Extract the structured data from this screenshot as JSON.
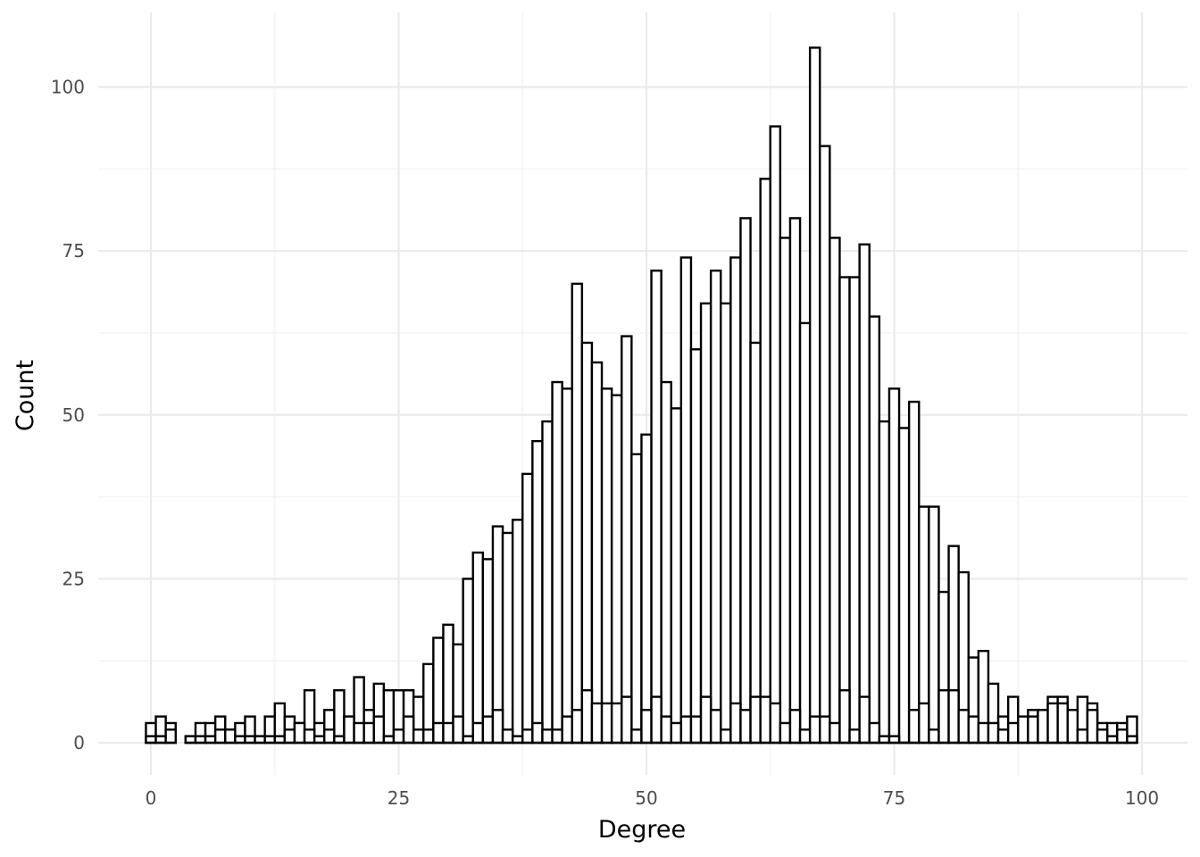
{
  "chart_data": {
    "type": "bar",
    "xlabel": "Degree",
    "ylabel": "Count",
    "xlim": [
      -5,
      105
    ],
    "ylim": [
      -5,
      111
    ],
    "x_ticks": [
      0,
      25,
      50,
      75,
      100
    ],
    "x_tick_labels": [
      "0",
      "25",
      "50",
      "75",
      "100"
    ],
    "y_ticks": [
      0,
      25,
      50,
      75,
      100
    ],
    "y_tick_labels": [
      "0",
      "25",
      "50",
      "75",
      "100"
    ],
    "grid": true,
    "legend": "none",
    "bin_width": 1,
    "series": [
      {
        "x": [
          0,
          1,
          2,
          4,
          5,
          6,
          7,
          8,
          9,
          10,
          11,
          12,
          13,
          14,
          15,
          16,
          17,
          18,
          19,
          20,
          21,
          22,
          23,
          24,
          25,
          26,
          27,
          28,
          29,
          30,
          31,
          32,
          33,
          34,
          35,
          36,
          37,
          38,
          39,
          40,
          41,
          42,
          43,
          44,
          45,
          46,
          47,
          48,
          49,
          50,
          51,
          52,
          53,
          54,
          55,
          56,
          57,
          58,
          59,
          60,
          61,
          62,
          63,
          64,
          65,
          66,
          67,
          68,
          69,
          70,
          71,
          72,
          73,
          74,
          75,
          76,
          77,
          78,
          79,
          80,
          81,
          82,
          83,
          84,
          85,
          86,
          87,
          88,
          89,
          90,
          91,
          92,
          93,
          94,
          95,
          96,
          97,
          98,
          99
        ],
        "values": [
          3,
          4,
          3,
          1,
          3,
          3,
          4,
          2,
          3,
          4,
          1,
          4,
          6,
          4,
          3,
          8,
          3,
          5,
          8,
          4,
          10,
          5,
          9,
          8,
          8,
          8,
          7,
          12,
          16,
          18,
          15,
          25,
          29,
          28,
          33,
          32,
          34,
          41,
          46,
          49,
          55,
          54,
          70,
          61,
          58,
          54,
          53,
          62,
          44,
          47,
          72,
          55,
          51,
          74,
          60,
          67,
          72,
          67,
          74,
          80,
          61,
          86,
          94,
          77,
          80,
          64,
          106,
          91,
          77,
          71,
          71,
          76,
          65,
          49,
          54,
          48,
          52,
          36,
          36,
          23,
          30,
          26,
          13,
          14,
          9,
          4,
          7,
          3,
          5,
          5,
          7,
          7,
          5,
          7,
          6,
          3,
          3,
          3,
          4
        ]
      },
      {
        "x": [
          0,
          1,
          2,
          4,
          5,
          6,
          7,
          8,
          9,
          10,
          11,
          12,
          13,
          14,
          15,
          16,
          17,
          18,
          19,
          20,
          21,
          22,
          23,
          24,
          25,
          26,
          27,
          28,
          29,
          30,
          31,
          32,
          33,
          34,
          35,
          36,
          37,
          38,
          39,
          40,
          41,
          42,
          43,
          44,
          45,
          46,
          47,
          48,
          49,
          50,
          51,
          52,
          53,
          54,
          55,
          56,
          57,
          58,
          59,
          60,
          61,
          62,
          63,
          64,
          65,
          66,
          67,
          68,
          69,
          70,
          71,
          72,
          73,
          74,
          75,
          76,
          77,
          78,
          79,
          80,
          81,
          82,
          83,
          84,
          85,
          86,
          87,
          88,
          89,
          90,
          91,
          92,
          93,
          94,
          95,
          96,
          97,
          98,
          99
        ],
        "values": [
          1,
          1,
          2,
          1,
          1,
          1,
          2,
          2,
          1,
          1,
          1,
          1,
          1,
          2,
          3,
          2,
          1,
          2,
          1,
          4,
          3,
          3,
          4,
          1,
          2,
          4,
          2,
          2,
          3,
          3,
          4,
          1,
          3,
          4,
          5,
          2,
          1,
          2,
          3,
          2,
          2,
          4,
          5,
          8,
          6,
          6,
          6,
          7,
          2,
          5,
          7,
          4,
          3,
          4,
          4,
          7,
          5,
          2,
          6,
          5,
          7,
          7,
          6,
          3,
          5,
          2,
          4,
          4,
          3,
          8,
          2,
          7,
          3,
          1,
          1,
          0,
          5,
          6,
          2,
          8,
          8,
          5,
          4,
          3,
          3,
          2,
          3,
          4,
          4,
          5,
          6,
          6,
          5,
          2,
          5,
          2,
          1,
          2,
          1
        ]
      },
      {
        "x": [
          0,
          1,
          2,
          4,
          5,
          6,
          7,
          8,
          9,
          10,
          11,
          12,
          13,
          14,
          15,
          16,
          17,
          18,
          19,
          20,
          21,
          22,
          23,
          24,
          25,
          26,
          27,
          28,
          29,
          30,
          31,
          32,
          33,
          34,
          35,
          36,
          37,
          38,
          39,
          40,
          41,
          42,
          43,
          44,
          45,
          46,
          47,
          48,
          49,
          50,
          51,
          52,
          53,
          54,
          55,
          56,
          57,
          58,
          59,
          60,
          61,
          62,
          63,
          64,
          65,
          66,
          67,
          68,
          69,
          70,
          71,
          72,
          73,
          74,
          75,
          76,
          77,
          78,
          79,
          80,
          81,
          82,
          83,
          84,
          85,
          86,
          87,
          88,
          89,
          90,
          91,
          92,
          93,
          94,
          95,
          96,
          97,
          98,
          99
        ],
        "values": [
          0,
          0,
          0,
          0,
          0,
          0,
          0,
          0,
          0,
          0,
          0,
          0,
          0,
          0,
          0,
          0,
          0,
          0,
          0,
          0,
          0,
          0,
          0,
          0,
          0,
          0,
          0,
          0,
          0,
          0,
          0,
          0,
          0,
          0,
          0,
          0,
          0,
          0,
          0,
          0,
          0,
          0,
          0,
          0,
          0,
          0,
          0,
          0,
          0,
          0,
          0,
          0,
          0,
          0,
          0,
          0,
          0,
          0,
          0,
          0,
          0,
          0,
          0,
          0,
          0,
          0,
          0,
          0,
          0,
          0,
          0,
          0,
          0,
          0,
          0,
          0,
          0,
          0,
          0,
          0,
          0,
          0,
          0,
          0,
          0,
          0,
          0,
          0,
          0,
          0,
          0,
          0,
          0,
          0,
          0,
          0,
          0,
          0,
          0
        ]
      }
    ]
  }
}
